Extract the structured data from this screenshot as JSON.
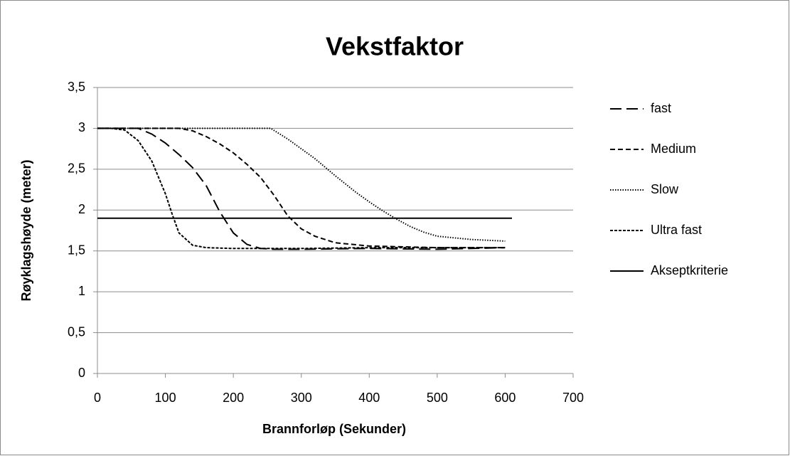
{
  "chart_data": {
    "type": "line",
    "title": "Vekstfaktor",
    "x_label": "Brannforløp (Sekunder)",
    "y_label": "Røyklagshøyde (meter)",
    "xlim": [
      0,
      700
    ],
    "xticks": [
      0,
      100,
      200,
      300,
      400,
      500,
      600,
      700
    ],
    "ylim": [
      0,
      3.5
    ],
    "yticks": [
      0,
      {
        "value": 0.5,
        "label": "0,5"
      },
      1,
      {
        "value": 1.5,
        "label": "1,5"
      },
      2,
      {
        "value": 2.5,
        "label": "2,5"
      },
      3,
      {
        "value": 3.5,
        "label": "3,5"
      }
    ],
    "grid": true,
    "legend": "right",
    "series": [
      {
        "name": "fast",
        "color": "#000000",
        "dash": "16,7",
        "x": [
          0,
          40,
          60,
          80,
          100,
          120,
          140,
          160,
          180,
          200,
          220,
          240,
          260,
          300,
          400,
          500,
          600
        ],
        "values": [
          3,
          3,
          3,
          2.93,
          2.82,
          2.68,
          2.52,
          2.3,
          1.98,
          1.72,
          1.58,
          1.53,
          1.52,
          1.52,
          1.53,
          1.52,
          1.54
        ]
      },
      {
        "name": "Medium",
        "color": "#000000",
        "dash": "7,4",
        "x": [
          0,
          120,
          140,
          160,
          180,
          200,
          220,
          240,
          260,
          280,
          300,
          320,
          350,
          400,
          450,
          500,
          600
        ],
        "values": [
          3,
          3,
          2.97,
          2.9,
          2.81,
          2.7,
          2.56,
          2.4,
          2.18,
          1.93,
          1.77,
          1.68,
          1.6,
          1.56,
          1.55,
          1.54,
          1.54
        ]
      },
      {
        "name": "Slow",
        "color": "#000000",
        "dash": "1.5,2",
        "x": [
          0,
          255,
          280,
          300,
          320,
          350,
          380,
          400,
          420,
          440,
          460,
          480,
          500,
          550,
          600
        ],
        "values": [
          3,
          3,
          2.87,
          2.75,
          2.63,
          2.42,
          2.22,
          2.1,
          1.99,
          1.89,
          1.8,
          1.73,
          1.68,
          1.64,
          1.62
        ]
      },
      {
        "name": "Ultra fast",
        "color": "#000000",
        "dash": "4,2",
        "x": [
          0,
          20,
          40,
          60,
          80,
          100,
          110,
          120,
          140,
          160,
          200,
          300,
          400,
          500,
          600
        ],
        "values": [
          3,
          3,
          2.98,
          2.85,
          2.6,
          2.2,
          1.95,
          1.72,
          1.57,
          1.54,
          1.53,
          1.53,
          1.54,
          1.54,
          1.54
        ]
      },
      {
        "name": "Akseptkriterie",
        "color": "#000000",
        "dash": "none",
        "x": [
          0,
          610
        ],
        "values": [
          1.9,
          1.9
        ]
      }
    ]
  }
}
